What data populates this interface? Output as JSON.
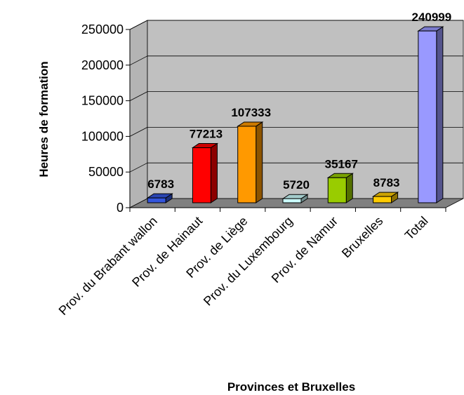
{
  "chart_data": {
    "type": "bar3d",
    "xlabel": "Provinces et Bruxelles",
    "ylabel": "Heures de formation",
    "categories": [
      "Prov. du Brabant wallon",
      "Prov. de Hainaut",
      "Prov. de Liège",
      "Prov. du Luxembourg",
      "Prov. de Namur",
      "Bruxelles",
      "Total"
    ],
    "values": [
      6783,
      77213,
      107333,
      5720,
      35167,
      8783,
      240999
    ],
    "colors": [
      "#3355dd",
      "#ff0000",
      "#ff9900",
      "#ccffff",
      "#99cc00",
      "#ffcc00",
      "#9999ff"
    ],
    "ylim": [
      0,
      250000
    ],
    "yticks": [
      0,
      50000,
      100000,
      150000,
      200000,
      250000
    ],
    "grid": true
  }
}
